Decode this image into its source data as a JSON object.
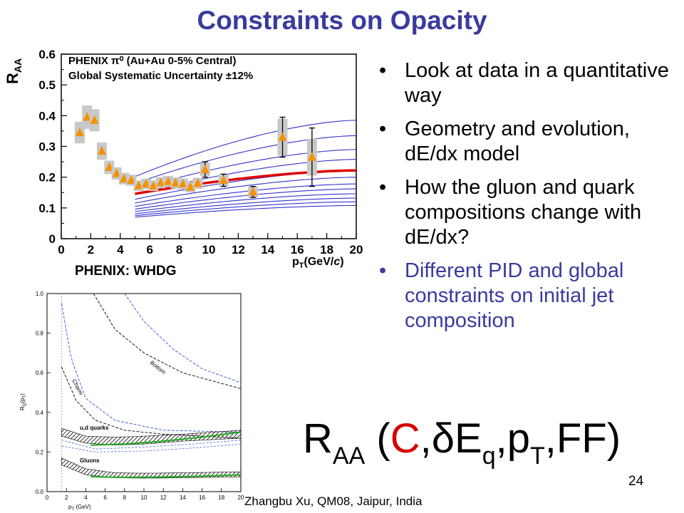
{
  "slide": {
    "title": "Constraints on Opacity",
    "whdg_label": "PHENIX: WHDG",
    "bullets": [
      "Look at data in a quantitative way",
      "Geometry and evolution, dE/dx model",
      "How the gluon and quark compositions change with dE/dx?",
      "Different PID and global constraints on initial jet composition"
    ],
    "formula": {
      "r": "R",
      "aa": "AA",
      "open": " (",
      "c": "C",
      "comma1": ",",
      "delta": "δ",
      "e": "E",
      "q": "q",
      "comma2": ",p",
      "t": "T",
      "ff": ",FF)"
    },
    "page_number": "24",
    "footer": "Zhangbu Xu, QM08, Jaipur, India"
  },
  "colors": {
    "title": "#3a3a9e",
    "theory_lines": "#3333cc",
    "best_fit": "#e00000",
    "markers": "#f39200",
    "sys_boxes": "#c8c8c8",
    "green_band": "#22aa22"
  },
  "chart_data": [
    {
      "type": "scatter",
      "ylabel_main": "R",
      "ylabel_sub": "AA",
      "xlabel_main": "p",
      "xlabel_sub": "T",
      "xlabel_unit": "(GeV/",
      "xlabel_c": "c",
      "xlabel_close": ")",
      "legend": [
        "PHENIX π⁰ (Au+Au 0-5% Central)",
        "Global Systematic Uncertainty ±12%"
      ],
      "xlim": [
        0,
        20
      ],
      "ylim": [
        0,
        0.6
      ],
      "xticks": [
        0,
        2,
        4,
        6,
        8,
        10,
        12,
        14,
        16,
        18,
        20
      ],
      "yticks": [
        0,
        0.1,
        0.2,
        0.3,
        0.4,
        0.5,
        0.6
      ],
      "points": [
        {
          "x": 1.25,
          "y": 0.345,
          "sys": 0.035
        },
        {
          "x": 1.75,
          "y": 0.395,
          "sys": 0.038
        },
        {
          "x": 2.25,
          "y": 0.385,
          "sys": 0.036
        },
        {
          "x": 2.75,
          "y": 0.285,
          "sys": 0.028
        },
        {
          "x": 3.25,
          "y": 0.232,
          "sys": 0.022
        },
        {
          "x": 3.75,
          "y": 0.212,
          "sys": 0.02
        },
        {
          "x": 4.25,
          "y": 0.195,
          "sys": 0.019
        },
        {
          "x": 4.75,
          "y": 0.19,
          "sys": 0.018
        },
        {
          "x": 5.25,
          "y": 0.172,
          "sys": 0.017
        },
        {
          "x": 5.75,
          "y": 0.178,
          "sys": 0.017
        },
        {
          "x": 6.25,
          "y": 0.172,
          "sys": 0.017
        },
        {
          "x": 6.75,
          "y": 0.182,
          "sys": 0.018
        },
        {
          "x": 7.25,
          "y": 0.186,
          "sys": 0.018
        },
        {
          "x": 7.75,
          "y": 0.181,
          "sys": 0.018
        },
        {
          "x": 8.25,
          "y": 0.178,
          "sys": 0.018
        },
        {
          "x": 8.75,
          "y": 0.168,
          "sys": 0.017
        },
        {
          "x": 9.25,
          "y": 0.18,
          "sys": 0.018
        },
        {
          "x": 9.75,
          "y": 0.225,
          "sys": 0.022,
          "err": 0.025
        },
        {
          "x": 11.0,
          "y": 0.19,
          "sys": 0.019,
          "err": 0.02
        },
        {
          "x": 13.0,
          "y": 0.152,
          "sys": 0.018,
          "err": 0.018
        },
        {
          "x": 15.0,
          "y": 0.33,
          "sys": 0.06,
          "err": 0.065
        },
        {
          "x": 17.0,
          "y": 0.265,
          "sys": 0.06,
          "err": 0.095
        }
      ],
      "theory_curves": [
        {
          "x": [
            5,
            20
          ],
          "y": [
            0.202,
            0.385
          ]
        },
        {
          "x": [
            5,
            20
          ],
          "y": [
            0.18,
            0.335
          ]
        },
        {
          "x": [
            5,
            20
          ],
          "y": [
            0.16,
            0.29
          ]
        },
        {
          "x": [
            5,
            20
          ],
          "y": [
            0.143,
            0.258
          ]
        },
        {
          "x": [
            5,
            20
          ],
          "y": [
            0.128,
            0.222
          ]
        },
        {
          "x": [
            5,
            20
          ],
          "y": [
            0.116,
            0.2
          ]
        },
        {
          "x": [
            5,
            20
          ],
          "y": [
            0.105,
            0.178
          ]
        },
        {
          "x": [
            5,
            20
          ],
          "y": [
            0.096,
            0.162
          ]
        },
        {
          "x": [
            5,
            20
          ],
          "y": [
            0.088,
            0.146
          ]
        },
        {
          "x": [
            5,
            20
          ],
          "y": [
            0.081,
            0.132
          ]
        },
        {
          "x": [
            5,
            20
          ],
          "y": [
            0.075,
            0.12
          ]
        },
        {
          "x": [
            5,
            20
          ],
          "y": [
            0.07,
            0.108
          ]
        }
      ],
      "best_fit": {
        "x": [
          5,
          20
        ],
        "y": [
          0.146,
          0.222
        ]
      }
    },
    {
      "type": "line",
      "ylabel_main": "R",
      "ylabel_sub": "Q",
      "ylabel_arg": "(p",
      "ylabel_arg_sub": "T",
      "ylabel_close": ")",
      "xlabel_main": "p",
      "xlabel_sub": "T",
      "xlabel_unit": " (GeV)",
      "xlim": [
        0,
        20
      ],
      "ylim": [
        0,
        1.0
      ],
      "xticks": [
        0,
        2,
        4,
        6,
        8,
        10,
        12,
        14,
        16,
        18,
        20
      ],
      "yticks": [
        0.0,
        0.2,
        0.4,
        0.6,
        0.8,
        1.0
      ],
      "annotations": [
        "Bottom",
        "Charm",
        "u,d quarks",
        "Gluons"
      ],
      "bottom_curves": [
        {
          "x": [
            4.8,
            7,
            10,
            14,
            20
          ],
          "y": [
            1.0,
            0.82,
            0.7,
            0.6,
            0.52
          ]
        },
        {
          "x": [
            8.0,
            10,
            13,
            16,
            20
          ],
          "y": [
            1.0,
            0.86,
            0.72,
            0.62,
            0.55
          ]
        }
      ],
      "charm_curves": [
        {
          "x": [
            1.5,
            3,
            5,
            8,
            12,
            20
          ],
          "y": [
            0.63,
            0.46,
            0.36,
            0.31,
            0.29,
            0.27
          ]
        },
        {
          "x": [
            1.5,
            2.5,
            4,
            7,
            12,
            20
          ],
          "y": [
            0.95,
            0.67,
            0.47,
            0.36,
            0.31,
            0.3
          ]
        }
      ],
      "ud_band": {
        "x": [
          1.5,
          4,
          7,
          10,
          14,
          20
        ],
        "upper": [
          0.32,
          0.28,
          0.275,
          0.28,
          0.29,
          0.31
        ],
        "lower": [
          0.28,
          0.245,
          0.235,
          0.24,
          0.255,
          0.27
        ]
      },
      "gluon_band": {
        "x": [
          1.5,
          4,
          7,
          10,
          14,
          20
        ],
        "upper": [
          0.17,
          0.115,
          0.095,
          0.093,
          0.095,
          0.1
        ],
        "lower": [
          0.135,
          0.085,
          0.07,
          0.068,
          0.07,
          0.075
        ]
      },
      "green_line_ud": {
        "x": [
          4.5,
          8,
          12,
          16,
          20
        ],
        "y": [
          0.235,
          0.24,
          0.255,
          0.275,
          0.3
        ]
      },
      "green_line_gluon": {
        "x": [
          4.5,
          8,
          12,
          16,
          20
        ],
        "y": [
          0.075,
          0.072,
          0.074,
          0.078,
          0.085
        ]
      }
    }
  ]
}
